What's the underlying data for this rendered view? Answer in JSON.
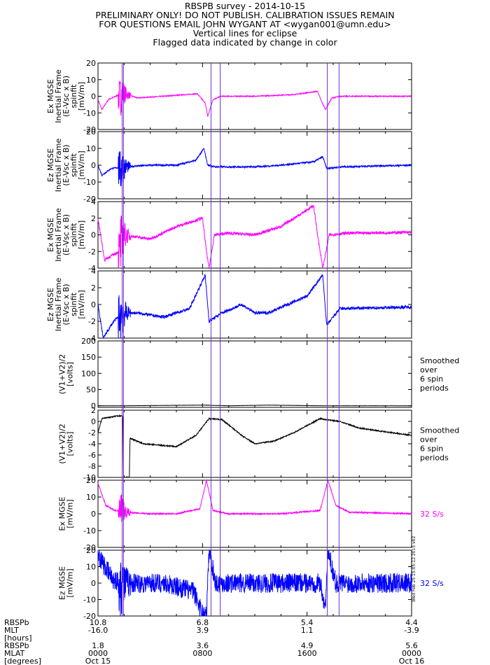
{
  "header": {
    "title": "RBSPB survey - 2014-10-15",
    "lines": [
      "PRELIMINARY ONLY! DO NOT PUBLISH. CALIBRATION ISSUES REMAIN",
      "FOR QUESTIONS EMAIL JOHN WYGANT AT <wygan001@umn.edu>",
      "Vertical lines for eclipse",
      "Flagged data indicated by change in color"
    ]
  },
  "colors": {
    "magenta": "#ff00ff",
    "blue": "#0000ff",
    "black": "#000000",
    "eclipse": "#7030d0"
  },
  "eclipse_times_hr": [
    1.85,
    1.95,
    8.65,
    9.35,
    17.55,
    18.45
  ],
  "chart_data": [
    {
      "type": "line",
      "ylabel": [
        "Ex MGSE",
        "Inertial Frame",
        "(E-Vsc x B)",
        "spinfit",
        "[mV/m]"
      ],
      "ylim": [
        -20,
        20
      ],
      "yticks": [
        20,
        10,
        0,
        -10,
        -20
      ],
      "color": "magenta",
      "noise": 0.3,
      "burst": 15,
      "profile": [
        [
          0,
          -2
        ],
        [
          0.3,
          -8
        ],
        [
          0.8,
          -2
        ],
        [
          1.9,
          2
        ],
        [
          3,
          -1
        ],
        [
          5,
          0
        ],
        [
          7.6,
          1.5
        ],
        [
          8.2,
          -4
        ],
        [
          8.4,
          -12
        ],
        [
          8.8,
          -2
        ],
        [
          9.4,
          0
        ],
        [
          12,
          0
        ],
        [
          15,
          1
        ],
        [
          16.8,
          3
        ],
        [
          17.1,
          -3
        ],
        [
          17.4,
          -8
        ],
        [
          17.9,
          -1
        ],
        [
          18.6,
          0
        ],
        [
          24,
          0
        ]
      ]
    },
    {
      "type": "line",
      "ylabel": [
        "Ez MGSE",
        "Inertial Frame",
        "(E-Vsc x B)",
        "spinfit",
        "[mV/m]"
      ],
      "ylim": [
        -20,
        20
      ],
      "yticks": [
        20,
        10,
        0,
        -10,
        -20
      ],
      "color": "blue",
      "noise": 0.5,
      "burst": 18,
      "profile": [
        [
          0,
          0
        ],
        [
          0.3,
          -6
        ],
        [
          1.0,
          -2
        ],
        [
          1.9,
          -1
        ],
        [
          4,
          0
        ],
        [
          6,
          0
        ],
        [
          7.5,
          3
        ],
        [
          8.1,
          10
        ],
        [
          8.4,
          0
        ],
        [
          9,
          -1
        ],
        [
          12,
          -1
        ],
        [
          14,
          0
        ],
        [
          16.5,
          2
        ],
        [
          17.2,
          5
        ],
        [
          17.5,
          -2
        ],
        [
          18.5,
          -1
        ],
        [
          24,
          0
        ]
      ]
    },
    {
      "type": "line",
      "ylabel": [
        "Ex MGSE",
        "Inertial Frame",
        "(E-Vsc x B)",
        "spinfit",
        "[mV/m]"
      ],
      "ylim": [
        -4,
        4
      ],
      "yticks": [
        4,
        2,
        0,
        -2,
        -4
      ],
      "color": "magenta",
      "noise": 0.18,
      "burst": 4,
      "profile": [
        [
          0,
          2
        ],
        [
          0.5,
          -3
        ],
        [
          1.6,
          -2
        ],
        [
          1.9,
          0
        ],
        [
          4,
          -0.5
        ],
        [
          6,
          1
        ],
        [
          8,
          2
        ],
        [
          8.3,
          -2
        ],
        [
          8.5,
          -4
        ],
        [
          8.9,
          0
        ],
        [
          10,
          0.2
        ],
        [
          12,
          0
        ],
        [
          14,
          1
        ],
        [
          16.5,
          3.5
        ],
        [
          16.9,
          -1
        ],
        [
          17.2,
          -4
        ],
        [
          17.7,
          0
        ],
        [
          19,
          0.2
        ],
        [
          24,
          0.3
        ]
      ]
    },
    {
      "type": "line",
      "ylabel": [
        "Ez MGSE",
        "Inertial Frame",
        "(E-Vsc x B)",
        "spinfit",
        "[mV/m]"
      ],
      "ylim": [
        -4,
        4
      ],
      "yticks": [
        4,
        2,
        0,
        -2,
        -4
      ],
      "color": "blue",
      "noise": 0.18,
      "burst": 4,
      "profile": [
        [
          0,
          0
        ],
        [
          0.4,
          -4
        ],
        [
          1.2,
          -2
        ],
        [
          1.9,
          -1
        ],
        [
          3,
          -1
        ],
        [
          5,
          -1.5
        ],
        [
          7,
          -0.5
        ],
        [
          8.2,
          3.5
        ],
        [
          8.5,
          -2
        ],
        [
          9.5,
          -1
        ],
        [
          11,
          0
        ],
        [
          12,
          -1
        ],
        [
          13,
          -1
        ],
        [
          16,
          1
        ],
        [
          17.2,
          3.5
        ],
        [
          17.5,
          -2.5
        ],
        [
          18.5,
          -0.5
        ],
        [
          24,
          -0.3
        ]
      ]
    },
    {
      "type": "line",
      "ylabel": [
        "(V1+V2)/2",
        "[volts]"
      ],
      "ylim": [
        -5,
        200
      ],
      "yticks": [
        200,
        150,
        100,
        50,
        0
      ],
      "color": "black",
      "noise": 0.3,
      "burst": 0,
      "note": [
        "Smoothed",
        "over",
        "6 spin",
        "periods"
      ],
      "profile": [
        [
          0,
          0
        ],
        [
          1.9,
          0
        ],
        [
          8,
          2
        ],
        [
          10,
          0
        ],
        [
          13,
          2
        ],
        [
          17,
          0
        ],
        [
          24,
          0
        ]
      ]
    },
    {
      "type": "line",
      "ylabel": [
        "(V1+V2)/2",
        "[volts]"
      ],
      "ylim": [
        -10,
        2
      ],
      "yticks": [
        2,
        0,
        -2,
        -4,
        -6,
        -8,
        -10
      ],
      "color": "black",
      "noise": 0.1,
      "burst": 0,
      "note": [
        "Smoothed",
        "over",
        "6 spin",
        "periods"
      ],
      "profile": [
        [
          0,
          -2
        ],
        [
          0.3,
          0.5
        ],
        [
          1.5,
          1
        ],
        [
          1.9,
          1
        ],
        [
          1.95,
          -10
        ],
        [
          2.4,
          -10
        ],
        [
          2.45,
          -3
        ],
        [
          3.5,
          -4
        ],
        [
          6,
          -4.5
        ],
        [
          7.5,
          -2.5
        ],
        [
          8.5,
          0.5
        ],
        [
          9.5,
          0.3
        ],
        [
          11,
          -2.5
        ],
        [
          12,
          -4
        ],
        [
          13.5,
          -3.5
        ],
        [
          15,
          -2
        ],
        [
          17,
          0.5
        ],
        [
          18.5,
          0
        ],
        [
          20,
          -1.2
        ],
        [
          24,
          -2.5
        ]
      ]
    },
    {
      "type": "line",
      "ylabel": [
        "Ex MGSE",
        "[mV/m]"
      ],
      "ylim": [
        -20,
        20
      ],
      "yticks": [
        20,
        10,
        0,
        -10,
        -20
      ],
      "color": "magenta",
      "noise": 0.4,
      "burst": 14,
      "note": [
        "32 S/s"
      ],
      "profile": [
        [
          0,
          18
        ],
        [
          0.6,
          5
        ],
        [
          1.3,
          2
        ],
        [
          1.9,
          1
        ],
        [
          4,
          0
        ],
        [
          6,
          0
        ],
        [
          7.8,
          3
        ],
        [
          8.3,
          20
        ],
        [
          8.8,
          2
        ],
        [
          10,
          0
        ],
        [
          14,
          0
        ],
        [
          17,
          2
        ],
        [
          17.6,
          20
        ],
        [
          18.2,
          5
        ],
        [
          19.2,
          1
        ],
        [
          24,
          0
        ]
      ]
    },
    {
      "type": "line",
      "ylabel": [
        "Ez MGSE",
        "[mV/m]"
      ],
      "ylim": [
        -20,
        20
      ],
      "yticks": [
        20,
        10,
        0,
        -10,
        -20
      ],
      "color": "blue",
      "noise": 6,
      "burst": 18,
      "note": [
        "32 S/s"
      ],
      "profile": [
        [
          0,
          18
        ],
        [
          0.5,
          10
        ],
        [
          1.2,
          2
        ],
        [
          1.9,
          0
        ],
        [
          5,
          0
        ],
        [
          7.3,
          -5
        ],
        [
          8.0,
          -18
        ],
        [
          8.3,
          -20
        ],
        [
          8.5,
          20
        ],
        [
          9,
          0
        ],
        [
          12,
          0
        ],
        [
          17,
          0
        ],
        [
          17.4,
          -15
        ],
        [
          17.6,
          20
        ],
        [
          18.2,
          0
        ],
        [
          24,
          0
        ]
      ]
    }
  ],
  "axis": {
    "x_hours_range": [
      0,
      24
    ],
    "row_labels": [
      "RBSPb",
      "MLT",
      "[hours]",
      "RBSPb",
      "MLAT",
      "[degrees]"
    ],
    "ticks": [
      {
        "hr": 0,
        "col": [
          "10.8",
          "-16.0",
          "1.8",
          "0000",
          "Oct 15"
        ]
      },
      {
        "hr": 8,
        "col": [
          "6.8",
          "3.9",
          "3.6",
          "0800",
          ""
        ]
      },
      {
        "hr": 16,
        "col": [
          "5.4",
          "1.1",
          "4.9",
          "1600",
          ""
        ]
      },
      {
        "hr": 24,
        "col": [
          "4.4",
          "-3.9",
          "5.6",
          "0000",
          "Oct 16"
        ]
      }
    ]
  },
  "stamp": "Wed Feb 25 15:05:12 2015 v02"
}
